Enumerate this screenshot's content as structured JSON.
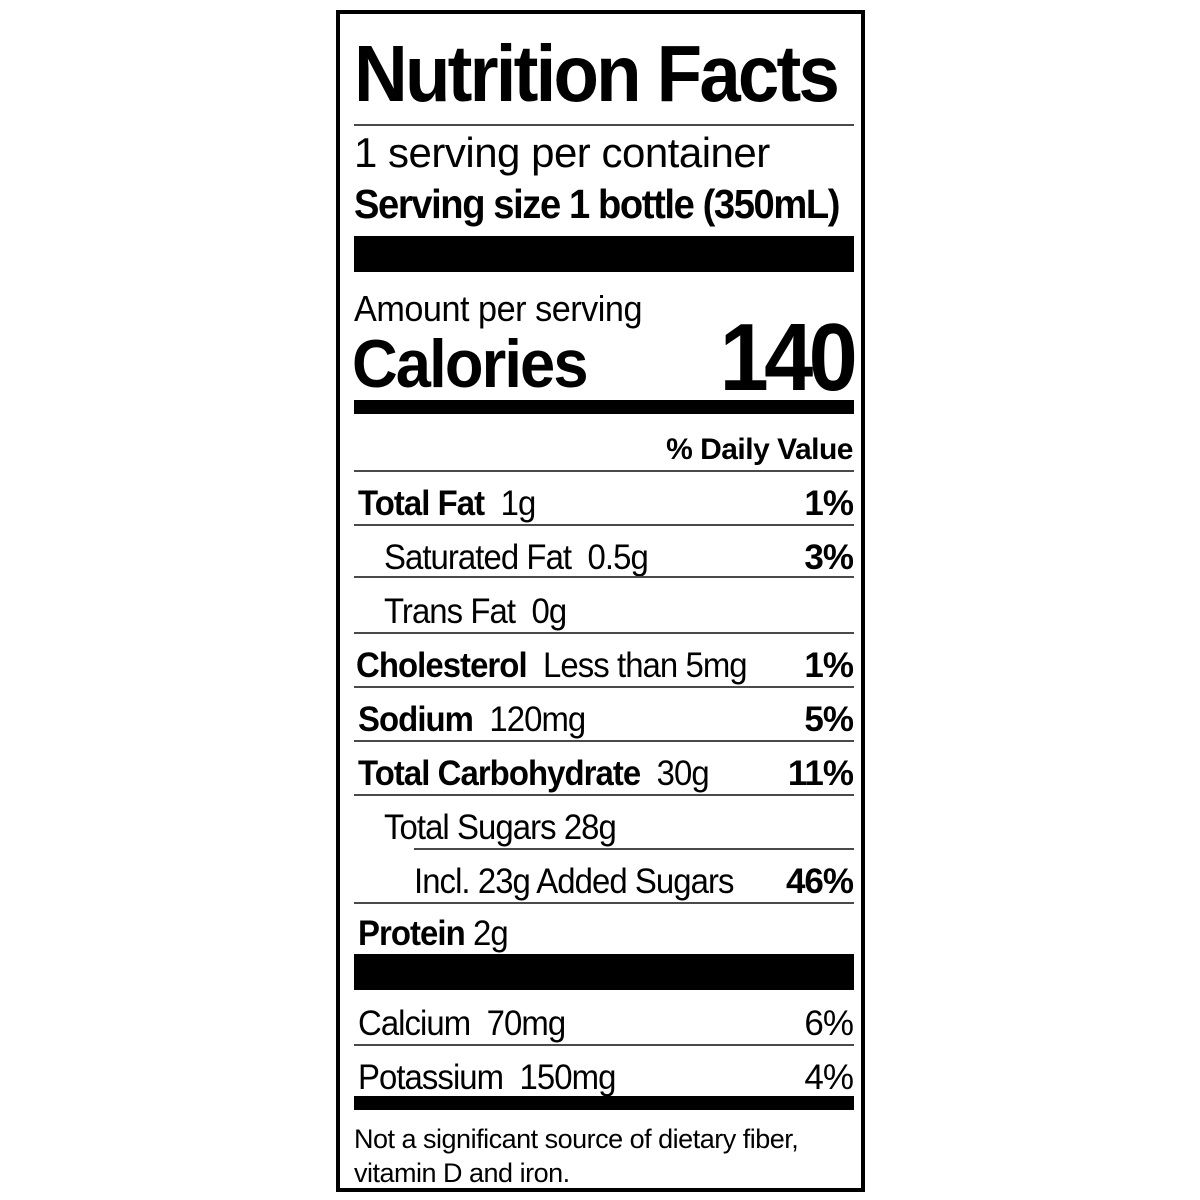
{
  "label": {
    "title": "Nutrition Facts",
    "servings_per_container": "1 serving per container",
    "serving_size": "Serving size 1 bottle (350mL)",
    "amount_per_serving": "Amount per serving",
    "calories_label": "Calories",
    "calories_value": "140",
    "daily_value_header": "% Daily Value",
    "nutrients": [
      {
        "name": "Total Fat",
        "amount": "1g",
        "dv": "1%"
      },
      {
        "name": "Saturated Fat",
        "amount": "0.5g",
        "dv": "3%"
      },
      {
        "name": "Trans Fat",
        "amount": "0g",
        "dv": ""
      },
      {
        "name": "Cholesterol",
        "amount": "Less than 5mg",
        "dv": "1%"
      },
      {
        "name": "Sodium",
        "amount": "120mg",
        "dv": "5%"
      },
      {
        "name": "Total Carbohydrate",
        "amount": "30g",
        "dv": "11%"
      },
      {
        "name": "Total Sugars",
        "amount": "28g",
        "dv": ""
      },
      {
        "name": "Incl. 23g Added Sugars",
        "amount": "",
        "dv": "46%"
      },
      {
        "name": "Protein",
        "amount": "2g",
        "dv": ""
      }
    ],
    "minerals": [
      {
        "name": "Calcium",
        "amount": "70mg",
        "dv": "6%"
      },
      {
        "name": "Potassium",
        "amount": "150mg",
        "dv": "4%"
      }
    ],
    "footnote_line1": "Not a significant source of dietary fiber,",
    "footnote_line2": "vitamin D and iron."
  }
}
